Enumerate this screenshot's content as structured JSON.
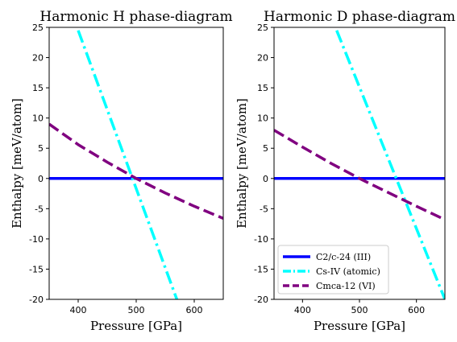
{
  "chart_data": [
    {
      "type": "line",
      "title": "Harmonic H phase-diagram",
      "xlabel": "Pressure [GPa]",
      "ylabel": "Enthalpy [meV/atom]",
      "xlim": [
        350,
        650
      ],
      "ylim": [
        -20,
        25
      ],
      "xticks": [
        400,
        500,
        600
      ],
      "yticks": [
        -20,
        -15,
        -10,
        -5,
        0,
        5,
        10,
        15,
        20,
        25
      ],
      "legend": "none",
      "series": [
        {
          "name": "C2/c-24 (III)",
          "color": "#0000ff",
          "style": "solid",
          "x": [
            350,
            650
          ],
          "y": [
            0,
            0
          ]
        },
        {
          "name": "Cs-IV (atomic)",
          "color": "#00ffff",
          "style": "dashdot",
          "x": [
            400,
            570
          ],
          "y": [
            24.5,
            -20
          ]
        },
        {
          "name": "Cmca-12 (VI)",
          "color": "#800080",
          "style": "dashed",
          "x": [
            350,
            400,
            450,
            500,
            550,
            600,
            650
          ],
          "y": [
            9,
            5.6,
            2.7,
            0,
            -2.4,
            -4.6,
            -6.6
          ]
        }
      ]
    },
    {
      "type": "line",
      "title": "Harmonic D phase-diagram",
      "xlabel": "Pressure [GPa]",
      "ylabel": "Enthalpy [meV/atom]",
      "xlim": [
        350,
        650
      ],
      "ylim": [
        -20,
        25
      ],
      "xticks": [
        400,
        500,
        600
      ],
      "yticks": [
        -20,
        -15,
        -10,
        -5,
        0,
        5,
        10,
        15,
        20,
        25
      ],
      "legend": "lower-left",
      "series": [
        {
          "name": "C2/c-24 (III)",
          "color": "#0000ff",
          "style": "solid",
          "x": [
            350,
            650
          ],
          "y": [
            0,
            0
          ]
        },
        {
          "name": "Cs-IV (atomic)",
          "color": "#00ffff",
          "style": "dashdot",
          "x": [
            460,
            650
          ],
          "y": [
            24.5,
            -20
          ]
        },
        {
          "name": "Cmca-12 (VI)",
          "color": "#800080",
          "style": "dashed",
          "x": [
            350,
            400,
            450,
            500,
            550,
            600,
            650
          ],
          "y": [
            8,
            5.2,
            2.5,
            0,
            -2.3,
            -4.6,
            -6.8
          ]
        }
      ]
    }
  ]
}
